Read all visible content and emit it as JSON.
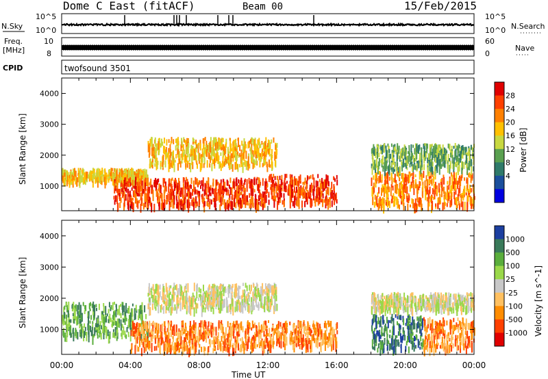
{
  "header": {
    "station": "Dome C East (fitACF)",
    "beam": "Beam 00",
    "date": "15/Feb/2015"
  },
  "strips": {
    "nsky_label": "N.Sky",
    "nsky_top": "10^5",
    "nsky_bottom": "10^0",
    "nsearch_label": "N.Search",
    "nsearch_top": "10^5",
    "nsearch_bottom": "10^0",
    "freq_label": "Freq.",
    "freq_unit": "[MHz]",
    "freq_top": "10",
    "freq_bottom": "8",
    "nave_label": "Nave",
    "nave_top": "60",
    "nave_bottom": "0",
    "cpid_label": "CPID",
    "cpid_value": "twofsound 3501"
  },
  "chart_data": [
    {
      "type": "heatmap",
      "panel": "power",
      "xlabel": "",
      "ylabel": "Slant Range [km]",
      "x_ticks": [
        "00:00",
        "04:00",
        "08:00",
        "12:00",
        "16:00",
        "20:00",
        "00:00"
      ],
      "x_hours": [
        0,
        4,
        8,
        12,
        16,
        20,
        24
      ],
      "y_ticks": [
        1000,
        2000,
        3000,
        4000
      ],
      "ylim": [
        200,
        4500
      ],
      "xlim_hours": [
        0,
        24
      ],
      "colorbar_label": "Power [dB]",
      "colorbar_ticks": [
        "28",
        "24",
        "20",
        "16",
        "12",
        "8",
        "4"
      ],
      "colorbar_colors": [
        "#e00000",
        "#ff4000",
        "#ff8000",
        "#ffc000",
        "#c8d840",
        "#5aa050",
        "#2f7a6a",
        "#1b4f9c",
        "#0000e0"
      ],
      "bands": [
        {
          "range_km": [
            1200,
            1600
          ],
          "hours": [
            0,
            5
          ],
          "db": 20
        },
        {
          "range_km": [
            400,
            1300
          ],
          "hours": [
            3,
            12
          ],
          "db": 26
        },
        {
          "range_km": [
            1700,
            2600
          ],
          "hours": [
            5,
            12.5
          ],
          "db": 18
        },
        {
          "range_km": [
            500,
            1400
          ],
          "hours": [
            12,
            16
          ],
          "db": 26
        },
        {
          "range_km": [
            400,
            1500
          ],
          "hours": [
            18,
            24
          ],
          "db": 24
        },
        {
          "range_km": [
            1600,
            2400
          ],
          "hours": [
            18,
            24
          ],
          "db": 14
        }
      ]
    },
    {
      "type": "heatmap",
      "panel": "velocity",
      "xlabel": "Time UT",
      "ylabel": "Slant Range [km]",
      "x_ticks": [
        "00:00",
        "04:00",
        "08:00",
        "12:00",
        "16:00",
        "20:00",
        "00:00"
      ],
      "x_hours": [
        0,
        4,
        8,
        12,
        16,
        20,
        24
      ],
      "y_ticks": [
        1000,
        2000,
        3000,
        4000
      ],
      "ylim": [
        200,
        4500
      ],
      "xlim_hours": [
        0,
        24
      ],
      "colorbar_label": "Velocity [m s^-1]",
      "colorbar_ticks": [
        "1000",
        "500",
        "100",
        "25",
        "-25",
        "-100",
        "-500",
        "-1000"
      ],
      "colorbar_colors": [
        "#1c3fa0",
        "#3a7a5a",
        "#5aae3c",
        "#9ad84a",
        "#c8c8c8",
        "#ffc060",
        "#ff8c00",
        "#ff4000",
        "#e00000"
      ],
      "bands": [
        {
          "range_km": [
            800,
            1900
          ],
          "hours": [
            0,
            5
          ],
          "ms": 100
        },
        {
          "range_km": [
            400,
            1300
          ],
          "hours": [
            4,
            12
          ],
          "ms": -300
        },
        {
          "range_km": [
            1700,
            2500
          ],
          "hours": [
            5,
            12.5
          ],
          "ms": 0
        },
        {
          "range_km": [
            500,
            1300
          ],
          "hours": [
            12,
            16
          ],
          "ms": -300
        },
        {
          "range_km": [
            400,
            1500
          ],
          "hours": [
            18,
            21
          ],
          "ms": 300
        },
        {
          "range_km": [
            400,
            1400
          ],
          "hours": [
            21,
            24
          ],
          "ms": -300
        },
        {
          "range_km": [
            1700,
            2200
          ],
          "hours": [
            18,
            24
          ],
          "ms": 0
        }
      ]
    }
  ]
}
